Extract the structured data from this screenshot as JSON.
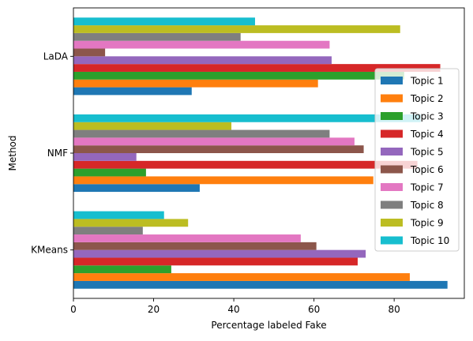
{
  "chart_data": {
    "type": "bar",
    "orientation": "horizontal",
    "title": "",
    "xlabel": "Percentage labeled Fake",
    "ylabel": "Method",
    "xlim": [
      0,
      97.5
    ],
    "xticks": [
      0,
      20,
      40,
      60,
      80
    ],
    "grid": false,
    "legend_position": "center-right",
    "categories": [
      "KMeans",
      "NMF",
      "LaDA"
    ],
    "series": [
      {
        "name": "Topic 1",
        "color": "#1f77b4",
        "values": [
          93.3,
          31.5,
          29.5
        ]
      },
      {
        "name": "Topic 2",
        "color": "#ff7f0e",
        "values": [
          83.9,
          74.8,
          61.0
        ]
      },
      {
        "name": "Topic 3",
        "color": "#2ca02c",
        "values": [
          24.4,
          18.1,
          82.5
        ]
      },
      {
        "name": "Topic 4",
        "color": "#d62728",
        "values": [
          70.9,
          85.8,
          91.5
        ]
      },
      {
        "name": "Topic 5",
        "color": "#9467bd",
        "values": [
          72.9,
          15.7,
          64.4
        ]
      },
      {
        "name": "Topic 6",
        "color": "#8c564b",
        "values": [
          60.6,
          72.4,
          7.9
        ]
      },
      {
        "name": "Topic 7",
        "color": "#e377c2",
        "values": [
          56.7,
          70.1,
          63.9
        ]
      },
      {
        "name": "Topic 8",
        "color": "#7f7f7f",
        "values": [
          17.3,
          63.9,
          41.7
        ]
      },
      {
        "name": "Topic 9",
        "color": "#bcbd22",
        "values": [
          28.6,
          39.4,
          81.5
        ]
      },
      {
        "name": "Topic 10",
        "color": "#17becf",
        "values": [
          22.6,
          86.6,
          45.3
        ]
      }
    ]
  }
}
